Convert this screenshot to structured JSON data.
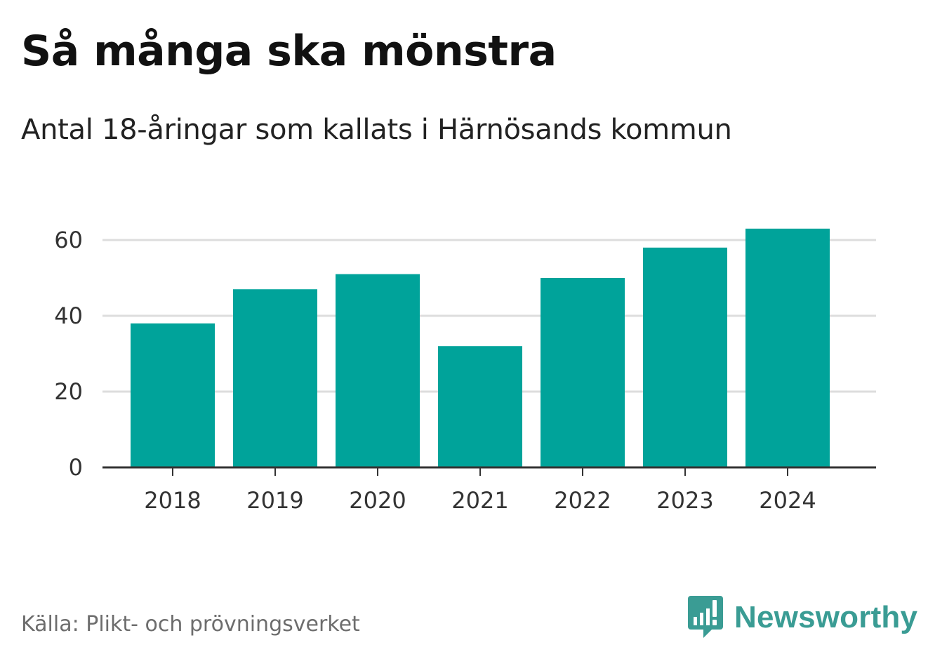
{
  "chart_data": {
    "type": "bar",
    "title": "Så många ska mönstra",
    "subtitle": "Antal 18-åringar som kallats i Härnösands kommun",
    "categories": [
      "2018",
      "2019",
      "2020",
      "2021",
      "2022",
      "2023",
      "2024"
    ],
    "values": [
      38,
      47,
      51,
      32,
      50,
      58,
      63
    ],
    "xlabel": "",
    "ylabel": "",
    "ylim": [
      0,
      60
    ],
    "yticks": [
      0,
      20,
      40,
      60
    ],
    "grid": true,
    "legend": "none",
    "bar_color": "#00a39a",
    "grid_color": "#dddddd",
    "axis_color": "#333333"
  },
  "footer": {
    "source": "Källa: Plikt- och prövningsverket",
    "brand": "Newsworthy",
    "brand_color": "#3a9c94"
  }
}
